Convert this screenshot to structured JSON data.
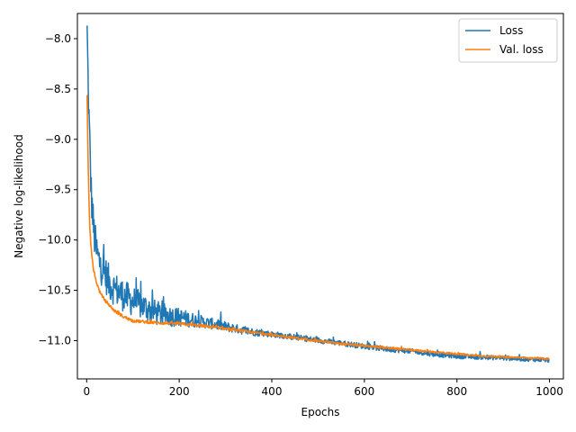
{
  "chart_data": {
    "type": "line",
    "xlabel": "Epochs",
    "ylabel": "Negative log-likelihood",
    "xlim": [
      -20,
      1030
    ],
    "ylim": [
      -11.38,
      -7.75
    ],
    "xticks": [
      0,
      200,
      400,
      600,
      800,
      1000
    ],
    "xtick_labels": [
      "0",
      "200",
      "400",
      "600",
      "800",
      "1000"
    ],
    "yticks": [
      -8.0,
      -8.5,
      -9.0,
      -9.5,
      -10.0,
      -10.5,
      -11.0
    ],
    "ytick_labels": [
      "−8.0",
      "−8.5",
      "−9.0",
      "−9.5",
      "−10.0",
      "−10.5",
      "−11.0"
    ],
    "grid": false,
    "legend_position": "upper right",
    "series": [
      {
        "name": "Loss",
        "color": "#1f77b4",
        "noise_amplitude": [
          [
            0,
            0.45
          ],
          [
            50,
            0.35
          ],
          [
            150,
            0.25
          ],
          [
            250,
            0.12
          ],
          [
            400,
            0.06
          ],
          [
            1000,
            0.04
          ]
        ],
        "x": [
          1,
          3,
          5,
          8,
          10,
          15,
          20,
          25,
          30,
          40,
          50,
          60,
          80,
          100,
          130,
          150,
          175,
          200,
          250,
          300,
          350,
          400,
          450,
          500,
          550,
          600,
          650,
          700,
          750,
          800,
          850,
          900,
          950,
          1000
        ],
        "y": [
          -7.87,
          -8.35,
          -8.75,
          -9.2,
          -9.5,
          -9.85,
          -10.05,
          -10.15,
          -10.2,
          -10.3,
          -10.4,
          -10.45,
          -10.52,
          -10.58,
          -10.65,
          -10.7,
          -10.73,
          -10.75,
          -10.8,
          -10.85,
          -10.9,
          -10.93,
          -10.96,
          -10.99,
          -11.02,
          -11.05,
          -11.08,
          -11.1,
          -11.13,
          -11.15,
          -11.16,
          -11.17,
          -11.18,
          -11.19
        ]
      },
      {
        "name": "Val. loss",
        "color": "#ff7f0e",
        "noise_amplitude": [
          [
            0,
            0.03
          ],
          [
            1000,
            0.015
          ]
        ],
        "x": [
          1,
          3,
          5,
          7,
          10,
          15,
          20,
          25,
          30,
          40,
          50,
          60,
          80,
          100,
          150,
          200,
          250,
          300,
          350,
          400,
          450,
          500,
          550,
          600,
          650,
          700,
          750,
          800,
          850,
          900,
          950,
          1000
        ],
        "y": [
          -8.56,
          -9.2,
          -9.6,
          -9.9,
          -10.1,
          -10.3,
          -10.4,
          -10.47,
          -10.53,
          -10.6,
          -10.65,
          -10.7,
          -10.76,
          -10.8,
          -10.82,
          -10.83,
          -10.85,
          -10.88,
          -10.91,
          -10.94,
          -10.97,
          -11.0,
          -11.03,
          -11.05,
          -11.07,
          -11.09,
          -11.11,
          -11.13,
          -11.15,
          -11.16,
          -11.17,
          -11.18
        ]
      }
    ]
  }
}
